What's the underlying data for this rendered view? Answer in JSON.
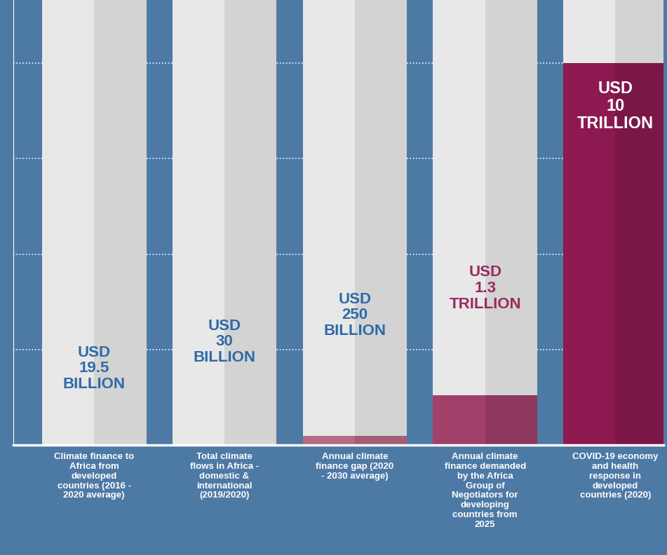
{
  "chart_data": {
    "type": "bar",
    "categories": [
      "Climate finance to Africa from developed countries (2016 - 2020 average)",
      "Total climate flows in Africa - domestic & international (2019/2020)",
      "Annual climate finance gap (2020 - 2030 average)",
      "Annual climate finance demanded by the Africa Group of Negotiators for developing countries from 2025",
      "COVID-19 economy and health response in developed countries (2020)"
    ],
    "values": [
      19.5,
      30,
      250,
      1300,
      10000
    ],
    "value_labels": [
      "USD 19.5 BILLION",
      "USD 30 BILLION",
      "USD 250 BILLION",
      "USD 1.3 TRILLION",
      "USD 10 TRILLION"
    ],
    "colors": [
      "#d9a3b6",
      "#cc8ba3",
      "#b86a87",
      "#a2406a",
      "#8c1a50"
    ],
    "ylim": [
      0,
      11650
    ],
    "yticks": [
      0,
      2500,
      5000,
      7500,
      10000
    ],
    "grid": true,
    "data_labels": true,
    "tick_labels": "x"
  }
}
